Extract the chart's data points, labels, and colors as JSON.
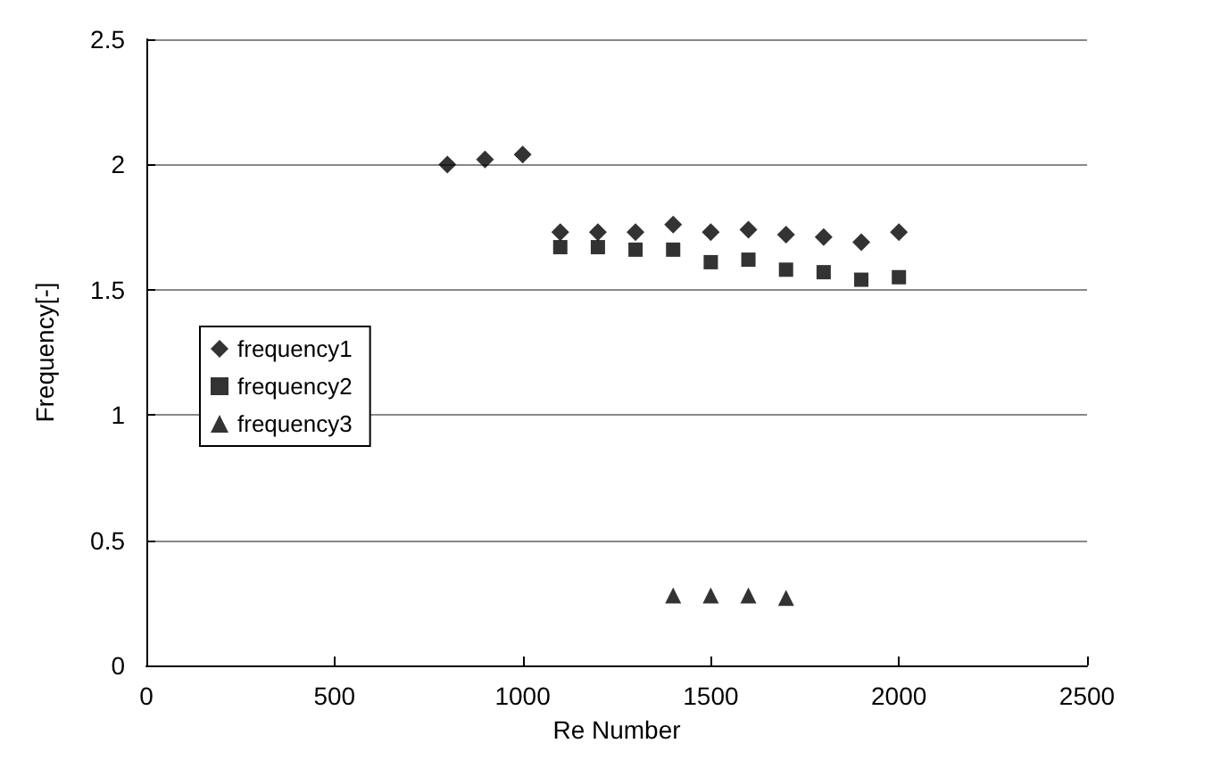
{
  "chart_data": {
    "type": "scatter",
    "xlabel": "Re Number",
    "ylabel": "Frequency[-]",
    "xlim": [
      0,
      2500
    ],
    "xticks": [
      0,
      500,
      1000,
      1500,
      2000,
      2500
    ],
    "ylim": [
      0,
      2.5
    ],
    "yticks": [
      0,
      0.5,
      1,
      1.5,
      2,
      2.5
    ],
    "grid": "y",
    "legend": "left",
    "series": [
      {
        "name": "frequency1",
        "color": "#000000",
        "marker": "diamond",
        "x": [
          800,
          900,
          1000,
          1100,
          1200,
          1300,
          1400,
          1500,
          1600,
          1700,
          1800,
          1900,
          2000
        ],
        "values": [
          2.0,
          2.02,
          2.04,
          1.73,
          1.73,
          1.73,
          1.76,
          1.73,
          1.74,
          1.72,
          1.71,
          1.69,
          1.73
        ]
      },
      {
        "name": "frequency2",
        "color": "#000000",
        "marker": "square",
        "x": [
          1100,
          1200,
          1300,
          1400,
          1500,
          1600,
          1700,
          1800,
          1900,
          2000
        ],
        "values": [
          1.67,
          1.67,
          1.66,
          1.66,
          1.61,
          1.62,
          1.58,
          1.57,
          1.54,
          1.55
        ]
      },
      {
        "name": "frequency3",
        "color": "#000000",
        "marker": "triangle",
        "x": [
          1400,
          1500,
          1600,
          1700
        ],
        "values": [
          0.28,
          0.28,
          0.28,
          0.27
        ]
      }
    ]
  }
}
